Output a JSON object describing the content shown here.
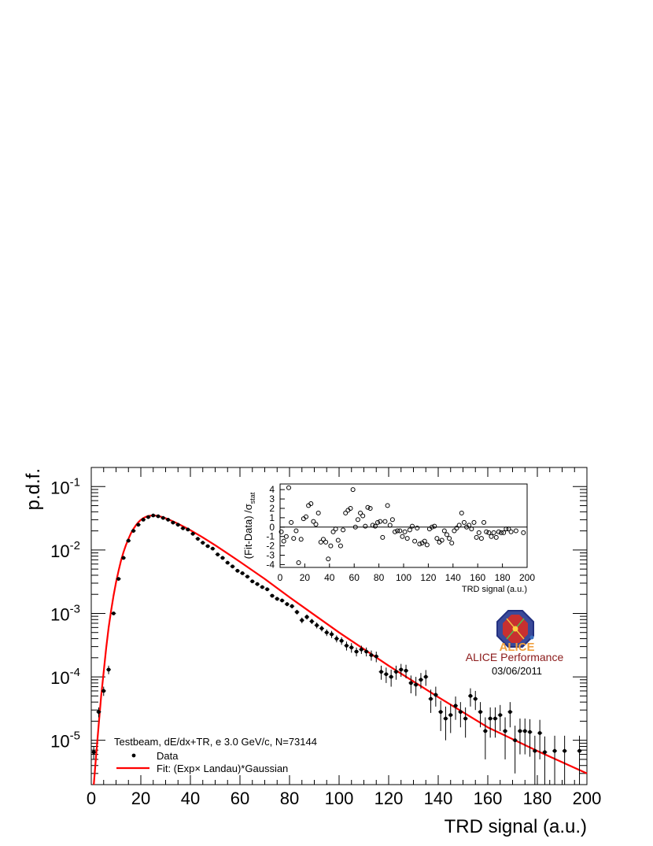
{
  "chart_data": [
    {
      "type": "scatter",
      "xlabel": "TRD signal (a.u.)",
      "ylabel": "p.d.f.",
      "xlim": [
        0,
        200
      ],
      "ylim": [
        2e-06,
        0.2
      ],
      "yscale": "log",
      "xticks": [
        "0",
        "20",
        "40",
        "60",
        "80",
        "100",
        "120",
        "140",
        "160",
        "180",
        "200"
      ],
      "yticks": [
        {
          "base": "10",
          "exp": "-1",
          "value": 0.1
        },
        {
          "base": "10",
          "exp": "-2",
          "value": 0.01
        },
        {
          "base": "10",
          "exp": "-3",
          "value": 0.001
        },
        {
          "base": "10",
          "exp": "-4",
          "value": 0.0001
        },
        {
          "base": "10",
          "exp": "-5",
          "value": 1e-05
        }
      ],
      "legend": {
        "placement": "bottom-left",
        "header": "Testbeam, dE/dx+TR, e 3.0 GeV/c, N=73144",
        "data_label": "Data",
        "fit_label": "Fit: (Exp× Landau)*Gaussian"
      },
      "series": [
        {
          "name": "Data",
          "style": "points",
          "color": "#000000",
          "points": [
            [
              1,
              6.5e-06,
              1.5e-06
            ],
            [
              3,
              2.8e-05,
              5e-06
            ],
            [
              5,
              6e-05,
              1e-05
            ],
            [
              7,
              0.00013,
              2e-05
            ],
            [
              9,
              0.001,
              5e-05
            ],
            [
              11,
              0.0035,
              0.0001
            ],
            [
              13,
              0.0075,
              0.0002
            ],
            [
              15,
              0.014,
              0.0003
            ],
            [
              17,
              0.02,
              0.0004
            ],
            [
              19,
              0.025,
              0.0005
            ],
            [
              21,
              0.03,
              0.0005
            ],
            [
              23,
              0.033,
              0.0006
            ],
            [
              25,
              0.035,
              0.0006
            ],
            [
              27,
              0.034,
              0.0006
            ],
            [
              29,
              0.032,
              0.0006
            ],
            [
              31,
              0.03,
              0.0006
            ],
            [
              33,
              0.027,
              0.0005
            ],
            [
              35,
              0.025,
              0.0005
            ],
            [
              37,
              0.022,
              0.0005
            ],
            [
              39,
              0.021,
              0.0005
            ],
            [
              41,
              0.018,
              0.0004
            ],
            [
              43,
              0.015,
              0.0004
            ],
            [
              45,
              0.013,
              0.0004
            ],
            [
              47,
              0.0115,
              0.0003
            ],
            [
              49,
              0.0105,
              0.0003
            ],
            [
              51,
              0.0085,
              0.0003
            ],
            [
              53,
              0.0075,
              0.0003
            ],
            [
              55,
              0.0063,
              0.0003
            ],
            [
              57,
              0.0055,
              0.0002
            ],
            [
              59,
              0.0047,
              0.0002
            ],
            [
              61,
              0.0043,
              0.0002
            ],
            [
              63,
              0.0038,
              0.0002
            ],
            [
              65,
              0.0032,
              0.0002
            ],
            [
              67,
              0.0029,
              0.00015
            ],
            [
              69,
              0.0026,
              0.00015
            ],
            [
              71,
              0.0024,
              0.00015
            ],
            [
              73,
              0.0019,
              0.00012
            ],
            [
              75,
              0.0017,
              0.00012
            ],
            [
              77,
              0.0016,
              0.0001
            ],
            [
              79,
              0.0014,
              0.0001
            ],
            [
              81,
              0.0013,
              0.0001
            ],
            [
              83,
              0.00105,
              9e-05
            ],
            [
              85,
              0.00078,
              8e-05
            ],
            [
              87,
              0.00088,
              8e-05
            ],
            [
              89,
              0.00075,
              7e-05
            ],
            [
              91,
              0.00065,
              7e-05
            ],
            [
              93,
              0.00058,
              6e-05
            ],
            [
              95,
              0.0005,
              6e-05
            ],
            [
              97,
              0.00047,
              6e-05
            ],
            [
              99,
              0.0004,
              5e-05
            ],
            [
              101,
              0.00037,
              5e-05
            ],
            [
              103,
              0.00031,
              5e-05
            ],
            [
              105,
              0.00029,
              5e-05
            ],
            [
              107,
              0.00025,
              4e-05
            ],
            [
              109,
              0.00027,
              4e-05
            ],
            [
              111,
              0.00025,
              4e-05
            ],
            [
              113,
              0.00022,
              4e-05
            ],
            [
              115,
              0.00021,
              4e-05
            ],
            [
              117,
              0.00012,
              3e-05
            ],
            [
              119,
              0.00011,
              3e-05
            ],
            [
              121,
              0.0001,
              3e-05
            ],
            [
              123,
              0.00012,
              3e-05
            ],
            [
              125,
              0.00013,
              3e-05
            ],
            [
              127,
              0.000125,
              3e-05
            ],
            [
              129,
              8e-05,
              2.5e-05
            ],
            [
              131,
              7.5e-05,
              2.5e-05
            ],
            [
              133,
              9e-05,
              2.5e-05
            ],
            [
              135,
              0.0001,
              2.8e-05
            ],
            [
              137,
              4.5e-05,
              1.8e-05
            ],
            [
              139,
              5.2e-05,
              1.8e-05
            ],
            [
              141,
              2.8e-05,
              1.4e-05
            ],
            [
              143,
              2.2e-05,
              1.2e-05
            ],
            [
              145,
              2.5e-05,
              1.2e-05
            ],
            [
              147,
              3.5e-05,
              1.4e-05
            ],
            [
              149,
              2.8e-05,
              1.2e-05
            ],
            [
              151,
              2.2e-05,
              1.1e-05
            ],
            [
              153,
              5e-05,
              1.6e-05
            ],
            [
              155,
              4.5e-05,
              1.5e-05
            ],
            [
              157,
              2.8e-05,
              1.2e-05
            ],
            [
              159,
              1.4e-05,
              9e-06
            ],
            [
              161,
              2.2e-05,
              1.1e-05
            ],
            [
              163,
              2.2e-05,
              1.1e-05
            ],
            [
              165,
              2.5e-05,
              1.1e-05
            ],
            [
              167,
              1.4e-05,
              9e-06
            ],
            [
              169,
              2.8e-05,
              1.2e-05
            ],
            [
              171,
              1e-05,
              7e-06
            ],
            [
              173,
              1.4e-05,
              8e-06
            ],
            [
              175,
              1.4e-05,
              8e-06
            ],
            [
              177,
              1.35e-05,
              8e-06
            ],
            [
              179,
              6.8e-06,
              5e-06
            ],
            [
              181,
              1.3e-05,
              8e-06
            ],
            [
              183,
              6.5e-06,
              5e-06
            ],
            [
              187,
              6.8e-06,
              5e-06
            ],
            [
              191,
              6.8e-06,
              5e-06
            ],
            [
              197,
              6.8e-06,
              5e-06
            ]
          ]
        },
        {
          "name": "Fit: (Exp× Landau)*Gaussian",
          "style": "line",
          "color": "#ff0000",
          "x": [
            1,
            2,
            3,
            4,
            5,
            6,
            7,
            8,
            9,
            10,
            11,
            12,
            13,
            14,
            15,
            16,
            17,
            18,
            19,
            20,
            21,
            22,
            23,
            24,
            25,
            26,
            27,
            28,
            30,
            32,
            34,
            36,
            38,
            40,
            45,
            50,
            55,
            60,
            70,
            80,
            90,
            100,
            120,
            140,
            160,
            180,
            200
          ],
          "y": [
            2e-06,
            6e-06,
            1.8e-05,
            5e-05,
            0.00012,
            0.00028,
            0.0006,
            0.0011,
            0.0019,
            0.0031,
            0.0047,
            0.0068,
            0.0092,
            0.012,
            0.015,
            0.0183,
            0.0215,
            0.0245,
            0.0273,
            0.0298,
            0.0318,
            0.0333,
            0.0343,
            0.0348,
            0.035,
            0.0348,
            0.0343,
            0.0336,
            0.0317,
            0.0294,
            0.0271,
            0.0248,
            0.0226,
            0.0205,
            0.0158,
            0.0119,
            0.0088,
            0.0065,
            0.0035,
            0.0018,
            0.00095,
            0.0005,
            0.00015,
            4.8e-05,
            1.6e-05,
            6.8e-06,
            3e-06
          ]
        }
      ]
    },
    {
      "type": "scatter",
      "placement": "inset top-right",
      "xlabel": "TRD signal (a.u.)",
      "ylabel_main": "(Fit-Data) /σ",
      "ylabel_sub": "stat",
      "xlim": [
        0,
        200
      ],
      "ylim": [
        -4.3,
        4.6
      ],
      "xticks": [
        "0",
        "20",
        "40",
        "60",
        "80",
        "100",
        "120",
        "140",
        "160",
        "180",
        "200"
      ],
      "yticks": [
        "4",
        "3",
        "2",
        "1",
        "0",
        "-1",
        "-2",
        "-3",
        "-4"
      ],
      "reference_line": 0,
      "series": [
        {
          "style": "open-circles",
          "color": "#000000",
          "x": [
            1,
            3,
            5,
            7,
            9,
            11,
            13,
            15,
            17,
            19,
            21,
            23,
            25,
            27,
            29,
            31,
            33,
            35,
            37,
            39,
            41,
            43,
            45,
            47,
            49,
            51,
            53,
            55,
            57,
            59,
            61,
            63,
            65,
            67,
            69,
            71,
            73,
            75,
            77,
            79,
            81,
            83,
            85,
            87,
            89,
            91,
            93,
            95,
            97,
            99,
            101,
            103,
            105,
            107,
            109,
            111,
            113,
            115,
            117,
            119,
            121,
            123,
            125,
            127,
            129,
            131,
            133,
            135,
            137,
            139,
            141,
            143,
            145,
            147,
            149,
            151,
            153,
            155,
            157,
            159,
            161,
            163,
            165,
            167,
            169,
            171,
            173,
            175,
            177,
            179,
            181,
            183,
            185,
            187,
            191,
            197
          ],
          "y": [
            -0.5,
            -1.5,
            -1.0,
            4.2,
            0.5,
            -1.2,
            -0.4,
            -3.8,
            -1.3,
            0.9,
            1.1,
            2.3,
            2.5,
            0.6,
            0.3,
            1.5,
            -1.6,
            -1.3,
            -1.6,
            -3.4,
            -2.0,
            -0.5,
            -0.2,
            -1.4,
            -2.0,
            -0.3,
            1.5,
            1.8,
            2.0,
            4.0,
            0.0,
            0.8,
            1.5,
            1.2,
            0.1,
            2.1,
            2.0,
            0.2,
            0.1,
            0.5,
            0.6,
            -1.1,
            0.6,
            2.3,
            0.2,
            0.8,
            -0.5,
            -0.4,
            -0.4,
            -1.0,
            -0.5,
            -1.2,
            -0.3,
            0.1,
            -1.5,
            -0.1,
            -1.8,
            -1.7,
            -1.5,
            -1.9,
            -0.2,
            0.0,
            0.1,
            -1.2,
            -1.6,
            -1.4,
            -0.4,
            -0.8,
            -1.2,
            -1.7,
            -0.4,
            -0.1,
            0.2,
            1.5,
            0.5,
            0.0,
            0.2,
            -0.2,
            0.5,
            -1.1,
            -0.6,
            -1.2,
            0.5,
            -0.5,
            -0.6,
            -1.0,
            -0.6,
            -1.1,
            -0.5,
            -0.6,
            -0.6,
            -0.2,
            -0.2,
            -0.5,
            -0.4,
            -0.6
          ]
        }
      ]
    }
  ],
  "logo": {
    "text": "ALICE",
    "caption": "ALICE Performance",
    "date": "03/06/2011",
    "caption_color": "#8b1a1a",
    "text_color": "#f0a040"
  }
}
